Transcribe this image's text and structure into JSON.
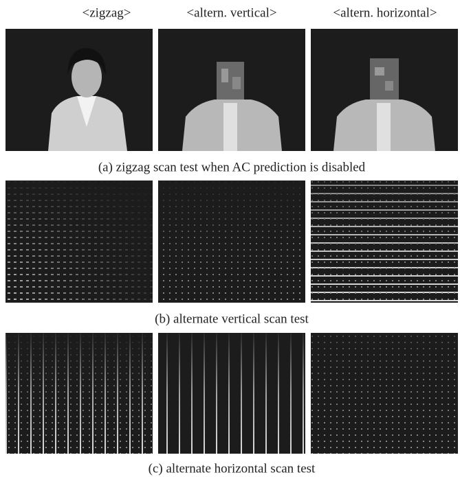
{
  "column_headers": [
    "<zigzag>",
    "<altern. vertical>",
    "<altern. horizontal>"
  ],
  "captions": [
    "(a) zigzag scan test when AC prediction is disabled",
    "(b) alternate vertical scan test",
    "(c) alternate horizontal scan test"
  ]
}
